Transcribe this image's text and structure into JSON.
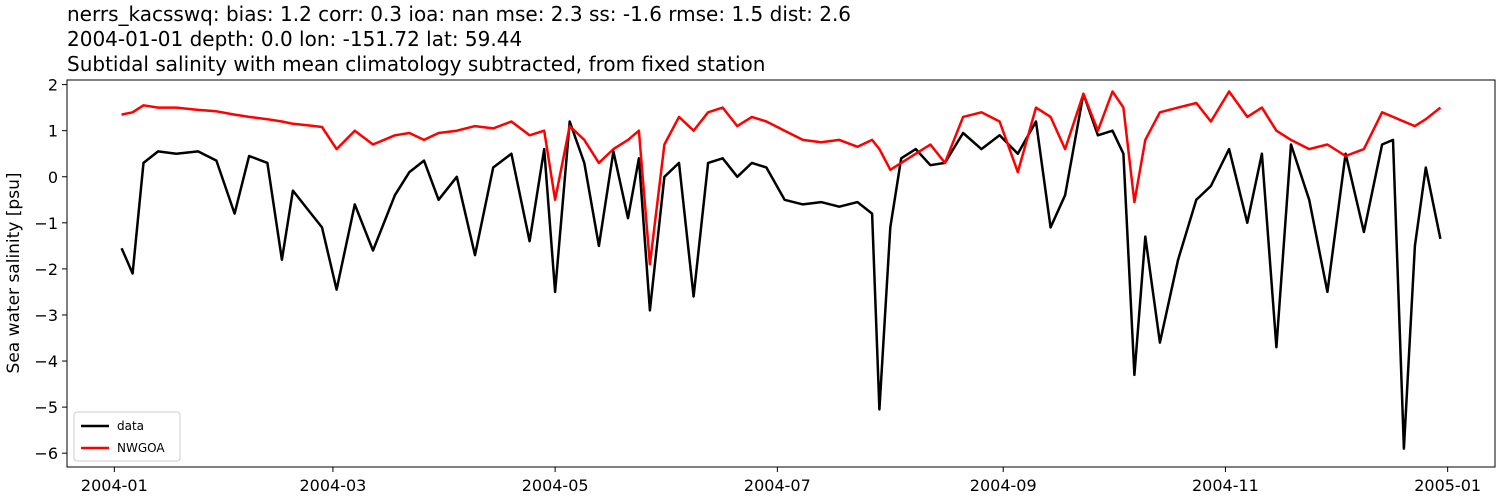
{
  "chart_data": {
    "type": "line",
    "title_lines": [
      "nerrs_kacsswq: bias: 1.2  corr: 0.3  ioa: nan  mse: 2.3  ss: -1.6  rmse: 1.5  dist: 2.6",
      "2004-01-01 depth: 0.0 lon: -151.72 lat: 59.44",
      "Subtidal salinity with mean climatology subtracted, from fixed station"
    ],
    "xlabel": "",
    "ylabel": "Sea water salinity [psu]",
    "xlim": [
      "2003-12-19",
      "2005-01-14"
    ],
    "ylim": [
      -6.3,
      2.1
    ],
    "x_ticks": [
      "2004-01",
      "2004-03",
      "2004-05",
      "2004-07",
      "2004-09",
      "2004-11",
      "2005-01"
    ],
    "y_ticks": [
      2,
      1,
      0,
      -1,
      -2,
      -3,
      -4,
      -5,
      -6
    ],
    "grid": false,
    "legend_position": "lower-left",
    "x": [
      "2004-01-03",
      "2004-01-06",
      "2004-01-09",
      "2004-01-13",
      "2004-01-18",
      "2004-01-24",
      "2004-01-29",
      "2004-02-03",
      "2004-02-07",
      "2004-02-12",
      "2004-02-16",
      "2004-02-19",
      "2004-02-23",
      "2004-02-27",
      "2004-03-02",
      "2004-03-07",
      "2004-03-12",
      "2004-03-18",
      "2004-03-22",
      "2004-03-26",
      "2004-03-30",
      "2004-04-04",
      "2004-04-09",
      "2004-04-14",
      "2004-04-19",
      "2004-04-24",
      "2004-04-28",
      "2004-05-01",
      "2004-05-05",
      "2004-05-09",
      "2004-05-13",
      "2004-05-17",
      "2004-05-21",
      "2004-05-24",
      "2004-05-27",
      "2004-05-31",
      "2004-06-04",
      "2004-06-08",
      "2004-06-12",
      "2004-06-16",
      "2004-06-20",
      "2004-06-24",
      "2004-06-28",
      "2004-07-03",
      "2004-07-08",
      "2004-07-13",
      "2004-07-18",
      "2004-07-23",
      "2004-07-27",
      "2004-07-29",
      "2004-08-01",
      "2004-08-04",
      "2004-08-08",
      "2004-08-12",
      "2004-08-16",
      "2004-08-21",
      "2004-08-26",
      "2004-08-31",
      "2004-09-05",
      "2004-09-10",
      "2004-09-14",
      "2004-09-18",
      "2004-09-23",
      "2004-09-27",
      "2004-10-01",
      "2004-10-04",
      "2004-10-07",
      "2004-10-10",
      "2004-10-14",
      "2004-10-19",
      "2004-10-24",
      "2004-10-28",
      "2004-11-02",
      "2004-11-07",
      "2004-11-11",
      "2004-11-15",
      "2004-11-19",
      "2004-11-24",
      "2004-11-29",
      "2004-12-04",
      "2004-12-09",
      "2004-12-14",
      "2004-12-17",
      "2004-12-20",
      "2004-12-23",
      "2004-12-26",
      "2004-12-30"
    ],
    "series": [
      {
        "name": "data",
        "color": "#000000",
        "values": [
          -1.55,
          -2.1,
          0.3,
          0.55,
          0.5,
          0.55,
          0.35,
          -0.8,
          0.45,
          0.3,
          -1.8,
          -0.3,
          -0.7,
          -1.1,
          -2.45,
          -0.6,
          -1.6,
          -0.4,
          0.1,
          0.35,
          -0.5,
          0.0,
          -1.7,
          0.2,
          0.5,
          -1.4,
          0.6,
          -2.5,
          1.2,
          0.3,
          -1.5,
          0.55,
          -0.9,
          0.4,
          -2.9,
          0.0,
          0.3,
          -2.6,
          0.3,
          0.4,
          0.0,
          0.3,
          0.2,
          -0.5,
          -0.6,
          -0.55,
          -0.65,
          -0.55,
          -0.8,
          -5.05,
          -1.1,
          0.4,
          0.6,
          0.25,
          0.3,
          0.95,
          0.6,
          0.9,
          0.5,
          1.2,
          -1.1,
          -0.4,
          1.8,
          0.9,
          1.0,
          0.5,
          -4.3,
          -1.3,
          -3.6,
          -1.8,
          -0.5,
          -0.2,
          0.6,
          -1.0,
          0.5,
          -3.7,
          0.7,
          -0.5,
          -2.5,
          0.5,
          -1.2,
          0.7,
          0.8,
          -5.9,
          -1.5,
          0.2,
          -1.35
        ]
      },
      {
        "name": "NWGOA",
        "color": "#ff0000",
        "values": [
          1.35,
          1.4,
          1.55,
          1.5,
          1.5,
          1.45,
          1.42,
          1.35,
          1.3,
          1.25,
          1.2,
          1.15,
          1.12,
          1.08,
          0.6,
          1.0,
          0.7,
          0.9,
          0.95,
          0.8,
          0.95,
          1.0,
          1.1,
          1.05,
          1.2,
          0.9,
          1.0,
          -0.5,
          1.1,
          0.8,
          0.3,
          0.6,
          0.8,
          1.0,
          -1.9,
          0.7,
          1.3,
          1.0,
          1.4,
          1.5,
          1.1,
          1.3,
          1.2,
          1.0,
          0.8,
          0.75,
          0.8,
          0.65,
          0.8,
          0.6,
          0.15,
          0.3,
          0.5,
          0.7,
          0.3,
          1.3,
          1.4,
          1.2,
          0.1,
          1.5,
          1.3,
          0.6,
          1.8,
          1.0,
          1.85,
          1.5,
          -0.55,
          0.8,
          1.4,
          1.5,
          1.6,
          1.2,
          1.85,
          1.3,
          1.5,
          1.0,
          0.8,
          0.6,
          0.7,
          0.45,
          0.6,
          1.4,
          1.3,
          1.2,
          1.1,
          1.25,
          1.5
        ]
      }
    ]
  }
}
